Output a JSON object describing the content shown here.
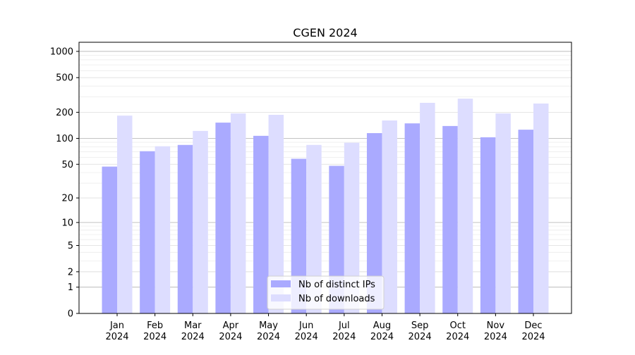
{
  "chart_data": {
    "type": "bar",
    "title": "CGEN 2024",
    "xlabel": "",
    "ylabel": "",
    "yscale": "log(1+y)",
    "ylim": [
      0,
      1300
    ],
    "yticks": [
      0,
      1,
      2,
      5,
      10,
      20,
      50,
      100,
      200,
      500,
      1000
    ],
    "grid": true,
    "legend_position": "bottom-center",
    "categories": [
      [
        "Jan",
        "2024"
      ],
      [
        "Feb",
        "2024"
      ],
      [
        "Mar",
        "2024"
      ],
      [
        "Apr",
        "2024"
      ],
      [
        "May",
        "2024"
      ],
      [
        "Jun",
        "2024"
      ],
      [
        "Jul",
        "2024"
      ],
      [
        "Aug",
        "2024"
      ],
      [
        "Sep",
        "2024"
      ],
      [
        "Oct",
        "2024"
      ],
      [
        "Nov",
        "2024"
      ],
      [
        "Dec",
        "2024"
      ]
    ],
    "series": [
      {
        "name": "Nb of distinct IPs",
        "color": "#aaaaff",
        "values": [
          47,
          71,
          84,
          152,
          107,
          58,
          48,
          115,
          149,
          139,
          103,
          126
        ]
      },
      {
        "name": "Nb of downloads",
        "color": "#ddddff",
        "values": [
          183,
          81,
          122,
          194,
          187,
          84,
          89,
          161,
          257,
          287,
          194,
          252
        ]
      }
    ]
  }
}
